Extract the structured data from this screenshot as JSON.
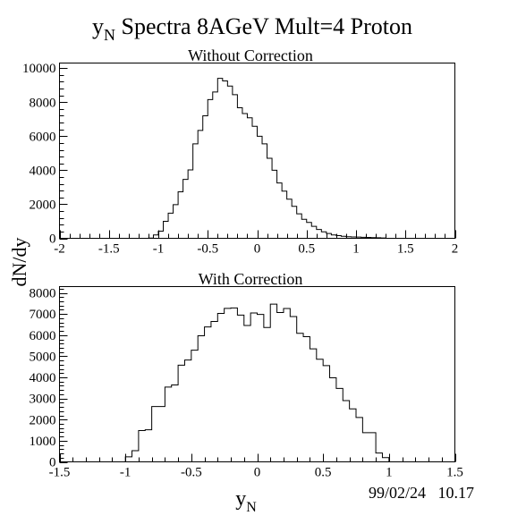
{
  "page": {
    "title_main": "y",
    "title_sub": "N",
    "title_rest": " Spectra 8AGeV Mult=4 Proton",
    "ylabel": "dN/dy",
    "xlabel_main": "y",
    "xlabel_sub": "N",
    "timestamp": "99/02/24   10.17"
  },
  "chart_data": [
    {
      "type": "bar",
      "title": "Without Correction",
      "xlim": [
        -2,
        2
      ],
      "ylim": [
        0,
        10300
      ],
      "x_ticks": [
        -2,
        -1.5,
        -1,
        -0.5,
        0,
        0.5,
        1,
        1.5,
        2
      ],
      "x_tick_labels": [
        "-2",
        "-1.5",
        "-1",
        "-0.5",
        "0",
        "0.5",
        "1",
        "1.5",
        "2"
      ],
      "y_ticks": [
        0,
        2000,
        4000,
        6000,
        8000,
        10000
      ],
      "y_tick_labels": [
        "0",
        "2000",
        "4000",
        "6000",
        "8000",
        "10000"
      ],
      "bin_start": -1.1,
      "bin_width": 0.05,
      "values": [
        10,
        200,
        420,
        1000,
        1480,
        1980,
        2730,
        3460,
        4020,
        5550,
        6340,
        7200,
        8150,
        8600,
        9400,
        9250,
        8950,
        8440,
        7670,
        7330,
        7080,
        6580,
        6000,
        5550,
        4700,
        4000,
        3250,
        2770,
        2300,
        1880,
        1440,
        1120,
        930,
        700,
        520,
        380,
        280,
        200,
        160,
        120,
        90,
        80,
        70,
        60,
        50,
        40,
        30,
        20
      ]
    },
    {
      "type": "bar",
      "title": "With Correction",
      "xlim": [
        -1.5,
        1.5
      ],
      "ylim": [
        0,
        8300
      ],
      "x_ticks": [
        -1.5,
        -1,
        -0.5,
        0,
        0.5,
        1,
        1.5
      ],
      "x_tick_labels": [
        "-1.5",
        "-1",
        "-0.5",
        "0",
        "0.5",
        "1",
        "1.5"
      ],
      "y_ticks": [
        0,
        1000,
        2000,
        3000,
        4000,
        5000,
        6000,
        7000,
        8000
      ],
      "y_tick_labels": [
        "0",
        "1000",
        "2000",
        "3000",
        "4000",
        "5000",
        "6000",
        "7000",
        "8000"
      ],
      "bin_start": -1.0,
      "bin_width": 0.05,
      "values": [
        240,
        530,
        1480,
        1520,
        2620,
        2620,
        3540,
        3640,
        4580,
        4820,
        5290,
        5970,
        6390,
        6650,
        7030,
        7270,
        7290,
        6950,
        6460,
        7050,
        6980,
        6360,
        7470,
        7070,
        7260,
        6880,
        6090,
        5930,
        5350,
        4860,
        4560,
        3980,
        3480,
        2900,
        2510,
        2100,
        1380,
        1380,
        420,
        200
      ]
    }
  ]
}
